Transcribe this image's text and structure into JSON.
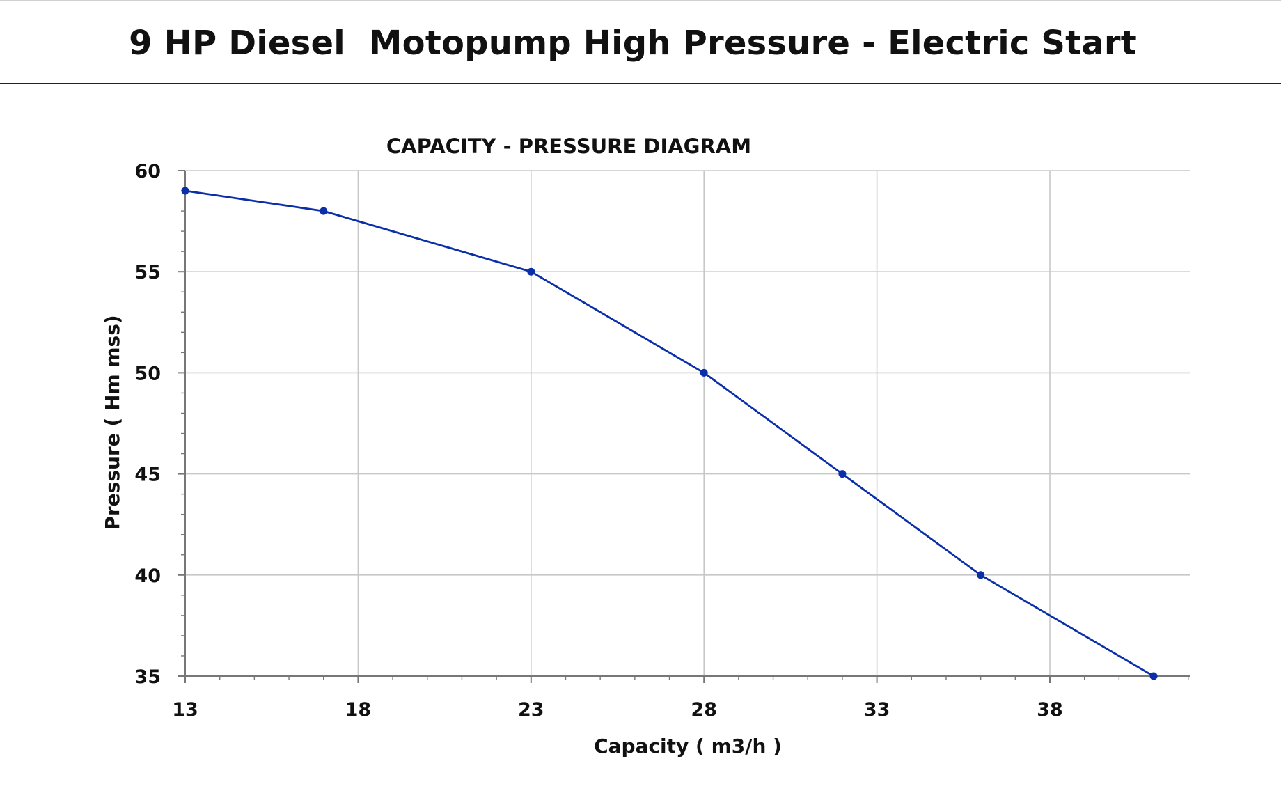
{
  "header": {
    "title": "9 HP Diesel  Motopump High Pressure - Electric Start"
  },
  "chart_data": {
    "type": "line",
    "title": "CAPACITY - PRESSURE DIAGRAM",
    "xlabel": "Capacity ( m3/h )",
    "ylabel": "Pressure ( Hm mss)",
    "x_ticks": [
      "13",
      "18",
      "23",
      "28",
      "33",
      "38"
    ],
    "y_ticks": [
      "35",
      "40",
      "45",
      "50",
      "55",
      "60"
    ],
    "xlim": [
      13,
      42
    ],
    "ylim": [
      35,
      60
    ],
    "grid": true,
    "legend": "none",
    "series": [
      {
        "color": "#0a2fa8",
        "points": [
          {
            "x": 13,
            "y": 59
          },
          {
            "x": 17,
            "y": 58
          },
          {
            "x": 23,
            "y": 55
          },
          {
            "x": 28,
            "y": 50
          },
          {
            "x": 32,
            "y": 45
          },
          {
            "x": 36,
            "y": 40
          },
          {
            "x": 41,
            "y": 35
          }
        ]
      }
    ],
    "colors": {
      "line": "#0a2fa8",
      "grid": "#c8c8c8",
      "axis": "#777777",
      "text": "#111111"
    }
  }
}
